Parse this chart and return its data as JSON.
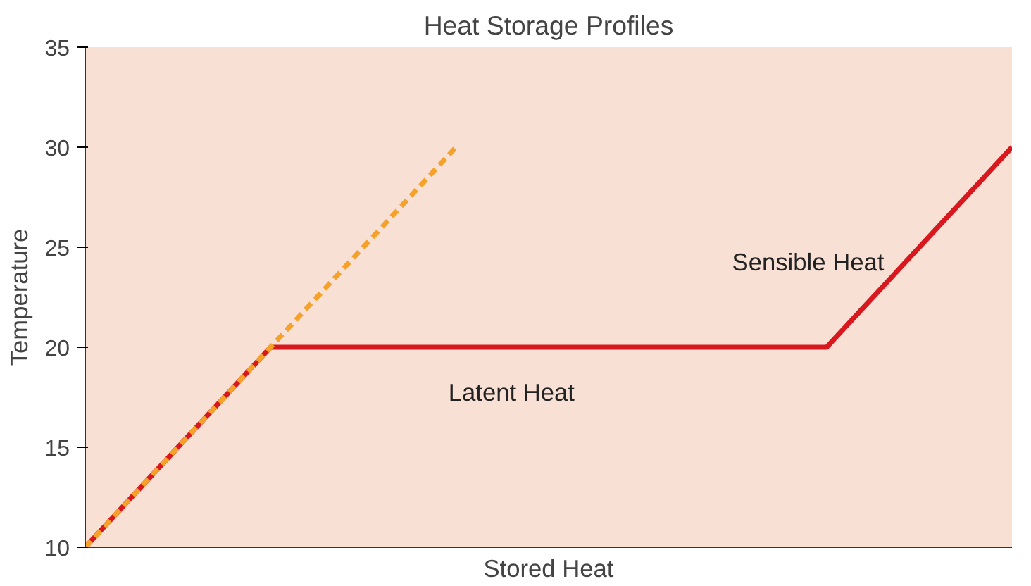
{
  "chart_data": {
    "type": "line",
    "title": "Heat Storage Profiles",
    "xlabel": "Stored Heat",
    "ylabel": "Temperature",
    "categories": [
      null,
      null,
      null,
      null,
      null,
      null,
      null,
      null,
      null,
      null,
      null,
      null,
      null,
      null,
      null,
      null,
      null,
      null,
      null,
      null,
      null
    ],
    "ylim": [
      10,
      35
    ],
    "yticks": [
      10,
      15,
      20,
      25,
      30,
      35
    ],
    "tick_labels": "y",
    "marker": "none",
    "series": [
      {
        "color": "#d7191f",
        "values": [
          10,
          12.5,
          15,
          17.5,
          20,
          20,
          20,
          20,
          20,
          20,
          20,
          20,
          20,
          20,
          20,
          20,
          20,
          22.5,
          25,
          27.5,
          30
        ],
        "line_style": "solid"
      },
      {
        "color": "#f5a12a",
        "values": [
          10,
          12.5,
          15,
          17.5,
          20,
          22.5,
          25,
          27.5,
          30,
          null,
          null,
          null,
          null,
          null,
          null,
          null,
          null,
          null,
          null,
          null,
          null
        ],
        "line_style": "dashed"
      }
    ],
    "annotations": [
      "Latent Heat",
      "Sensible Heat"
    ]
  }
}
